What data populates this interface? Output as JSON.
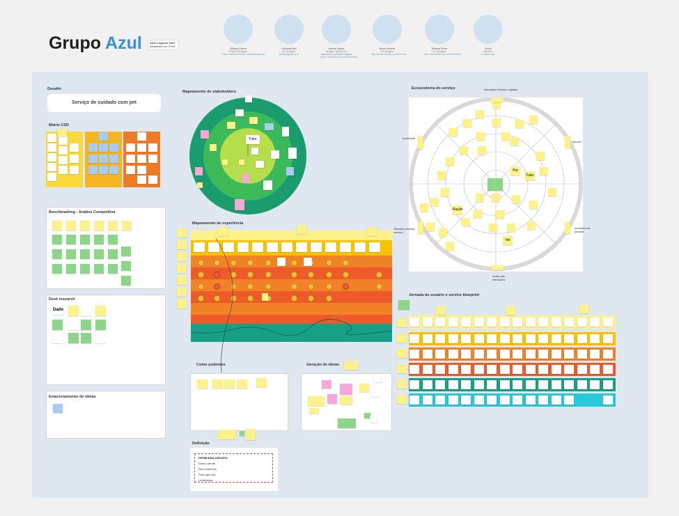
{
  "header": {
    "title_part1": "Grupo",
    "title_part2": "Azul",
    "badge_line1": "Aula 1 agosto 2021",
    "badge_line2": "Atualizado em 07/08"
  },
  "team": [
    {
      "name": "Adriana Gomes",
      "role": "Product Designer",
      "link": "https://www.behance.net/adrianagomes"
    },
    {
      "name": "Gabriela Brito",
      "role": "UX designer",
      "link": "gbrito@gmail.com"
    },
    {
      "name": "Helena Santos",
      "role": "designer gráfica em migração p/ produtos digitais",
      "link": "https://www.linkedin.com/in/helena"
    },
    {
      "name": "Bruna Moreira",
      "role": "UX designer",
      "link": "http://www.linkedin.com/in/bruna"
    },
    {
      "name": "Roberta Freire",
      "role": "UX designer",
      "link": "https://www.linkedin.com/in/roberta"
    },
    {
      "name": "Bruna",
      "role": "Membro",
      "link": "Contato aqui"
    }
  ],
  "sections": {
    "desafio": "Desafio",
    "desafio_text": "Serviço de cuidado com pet",
    "matriz": "Matriz CSD",
    "benchmarking": "Benchmarking - Análise Competitiva",
    "desk": "Desk research",
    "desk_note": "Dado",
    "estacionamento": "Estacionamento de ideias",
    "stakeholders": "Mapeamento de stakeholders",
    "stakeholders_center": "Tutor",
    "experiencia": "Mapeamento de experiência",
    "ecossistema": "Ecossistema do serviço",
    "jornada": "Jornada do usuário e service blueprint",
    "como": "Como podemos",
    "geracao": "Geração de ideias",
    "definicao": "Definição",
    "definicao_heading": "PROBLEMA DESAFIO",
    "definicao_lines": [
      "Nosso cliente",
      "Nós criaremos",
      "Para que eles",
      "Lembrando"
    ]
  },
  "ecosystem": {
    "top": "Interações físicas e digitais",
    "bottom": "locais das interações",
    "left_top": "motivação",
    "left_bottom": "Buscam produto, serviço",
    "right_top": "acesso",
    "right_bottom": "momento da jornada",
    "center_note": "Pet",
    "note_a": "Tutor",
    "note_b": "Ração",
    "note_c": "Vet"
  },
  "colors": {
    "blue": "#3a8fdf",
    "green_dark": "#1a9c6f",
    "green_mid": "#3cba5a",
    "green_light": "#b6de4c",
    "orange": "#f18227",
    "orange_red": "#ef5a2a",
    "teal": "#16a085",
    "cyan": "#26c9d9",
    "yellow_row": "#fbc200"
  }
}
